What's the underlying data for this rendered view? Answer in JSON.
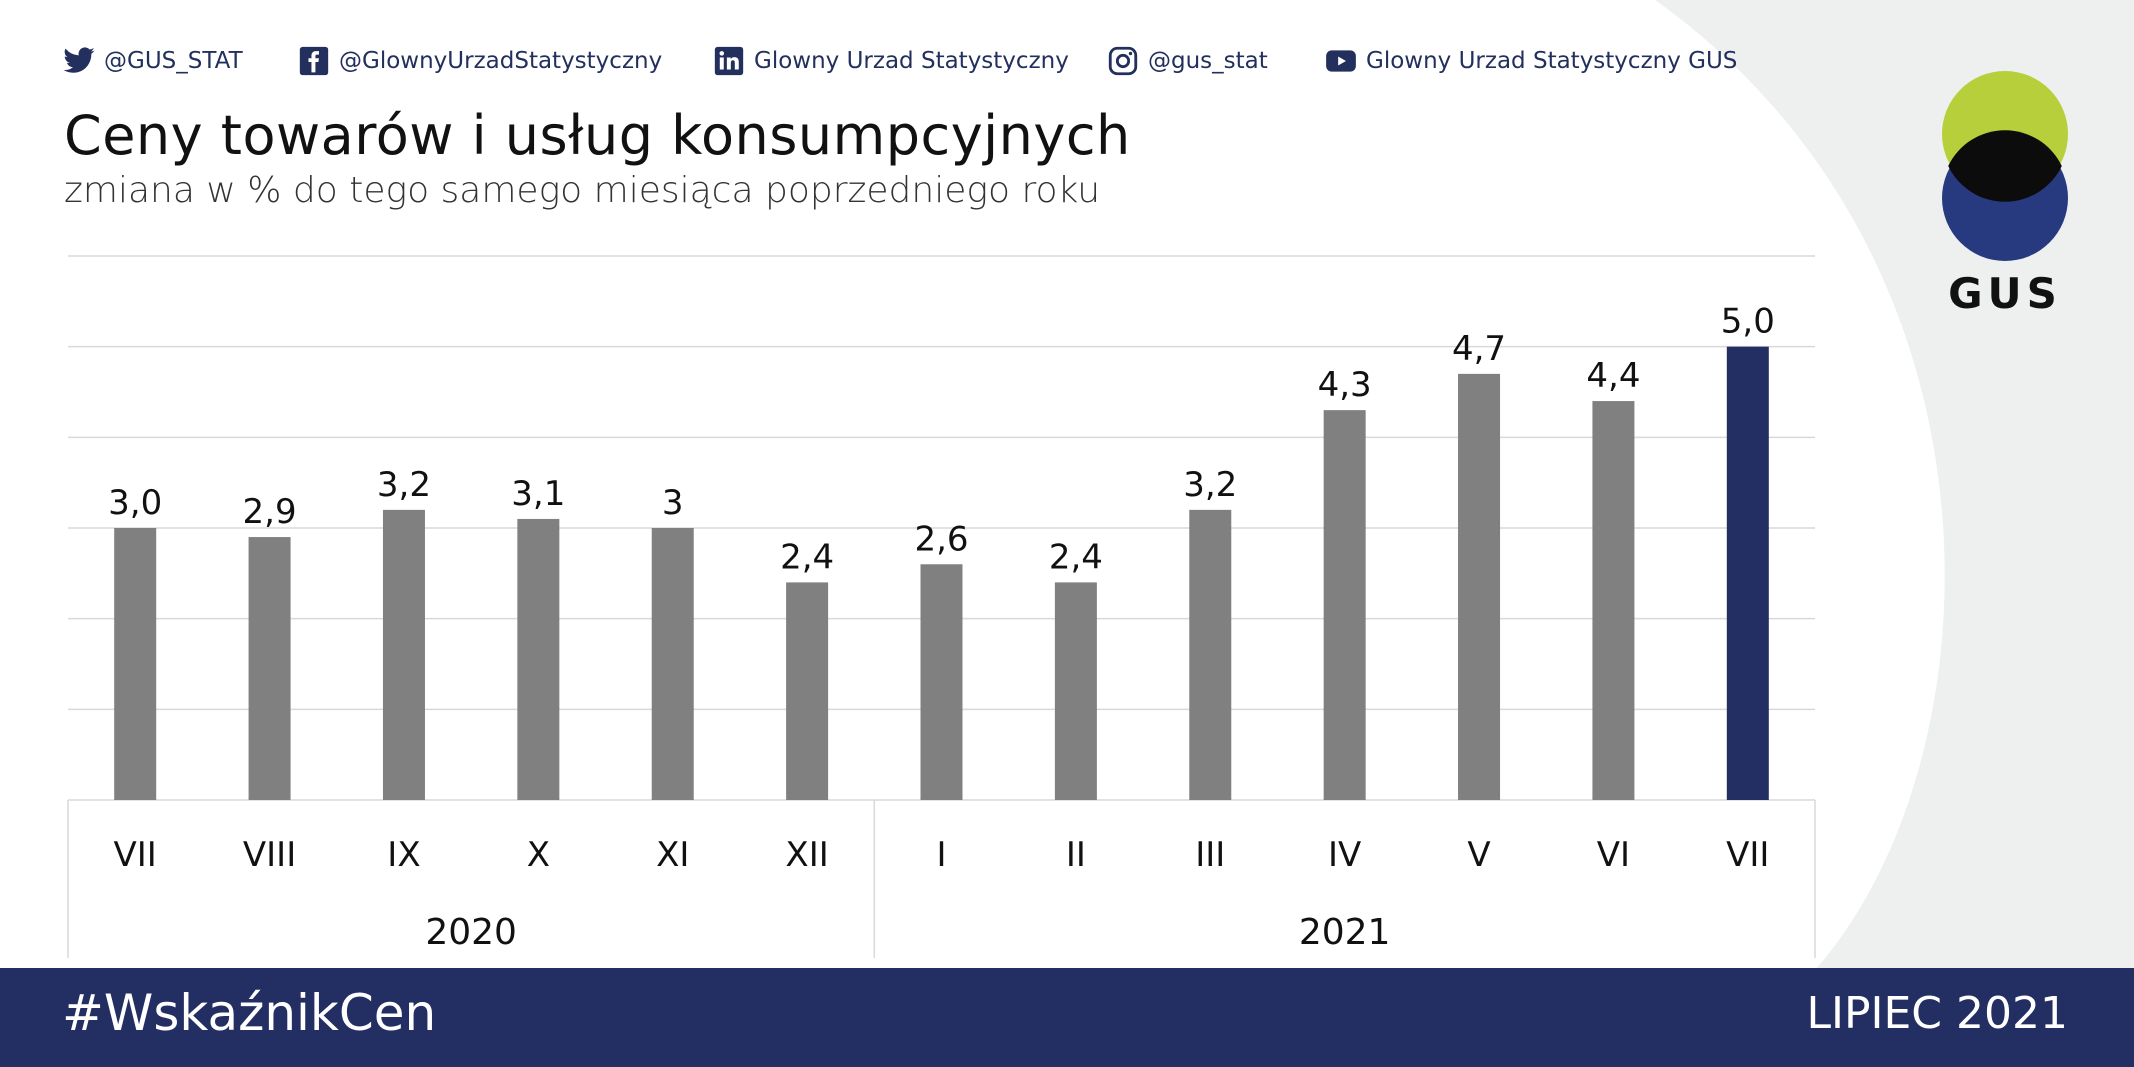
{
  "social": {
    "twitter": "@GUS_STAT",
    "facebook": "@GlownyUrzadStatystyczny",
    "linkedin": "Glowny Urzad Statystyczny",
    "instagram": "@gus_stat",
    "youtube": "Glowny Urzad Statystyczny GUS"
  },
  "logo": {
    "text": "GUS",
    "colors": {
      "top_circle": "#b6cf3b",
      "bottom_circle": "#273a80",
      "overlap": "#0c0c0c"
    }
  },
  "footer": {
    "hashtag": "#WskaźnikCen",
    "period": "LIPIEC 2021"
  },
  "colors": {
    "bar": "#808080",
    "bar_highlight": "#232e63",
    "grid": "#d9d9d9",
    "footer_bg": "#232e63",
    "side_panel": "#eef0f0"
  },
  "chart_data": {
    "type": "bar",
    "title": "Ceny towarów i usług konsumpcyjnych",
    "subtitle": "zmiana w % do tego samego miesiąca poprzedniego roku",
    "categories": [
      "VII",
      "VIII",
      "IX",
      "X",
      "XI",
      "XII",
      "I",
      "II",
      "III",
      "IV",
      "V",
      "VI",
      "VII"
    ],
    "values": [
      3.0,
      2.9,
      3.2,
      3.1,
      3.0,
      2.4,
      2.6,
      2.4,
      3.2,
      4.3,
      4.7,
      4.4,
      5.0
    ],
    "labels": [
      "3,0",
      "2,9",
      "3,2",
      "3,1",
      "3",
      "2,4",
      "2,6",
      "2,4",
      "3,2",
      "4,3",
      "4,7",
      "4,4",
      "5,0"
    ],
    "highlight_index": 12,
    "groups": [
      {
        "label": "2020",
        "count": 6
      },
      {
        "label": "2021",
        "count": 7
      }
    ],
    "ylim": [
      0,
      6
    ],
    "gridlines": [
      0,
      1,
      2,
      3,
      4,
      5,
      6
    ],
    "grid": true,
    "legend": false
  }
}
